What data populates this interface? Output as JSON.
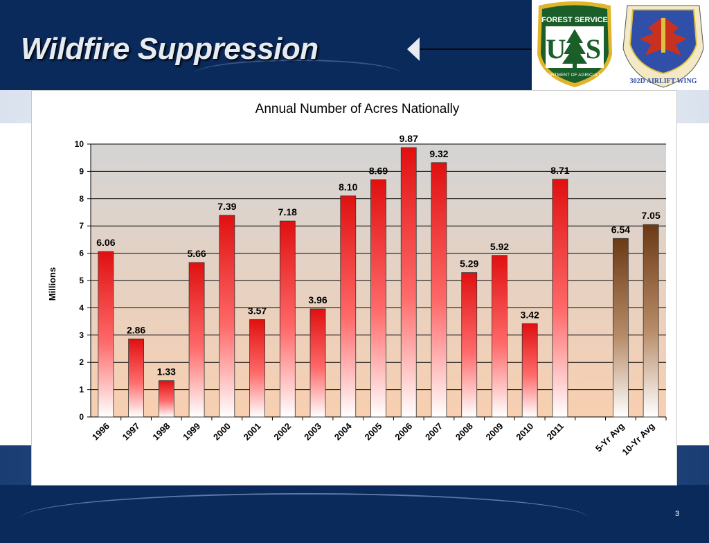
{
  "slide": {
    "title": "Wildfire Suppression",
    "page_number": "3"
  },
  "logos": {
    "forest_service": {
      "top_text": "FOREST SERVICE",
      "letters": "US",
      "bottom_text": "DEPARTMENT OF AGRICULTURE",
      "color": "#1a5e2a",
      "accent": "#e0b52a"
    },
    "airlift_wing": {
      "text": "302D AIRLIFT WING",
      "color": "#2f4fa8",
      "accent": "#c83020"
    }
  },
  "chart_data": {
    "type": "bar",
    "title": "Annual Number of Acres Nationally",
    "xlabel": "",
    "ylabel": "Millions",
    "ylim": [
      0,
      10
    ],
    "yticks": [
      0,
      1,
      2,
      3,
      4,
      5,
      6,
      7,
      8,
      9,
      10
    ],
    "grid": true,
    "categories": [
      "1996",
      "1997",
      "1998",
      "1999",
      "2000",
      "2001",
      "2002",
      "2003",
      "2004",
      "2005",
      "2006",
      "2007",
      "2008",
      "2009",
      "2010",
      "2011",
      "",
      "5-Yr Avg",
      "10-Yr Avg"
    ],
    "values": [
      6.06,
      2.86,
      1.33,
      5.66,
      7.39,
      3.57,
      7.18,
      3.96,
      8.1,
      8.69,
      9.87,
      9.32,
      5.29,
      5.92,
      3.42,
      8.71,
      null,
      6.54,
      7.05
    ],
    "data_labels": [
      "6.06",
      "2.86",
      "1.33",
      "5.66",
      "7.39",
      "3.57",
      "7.18",
      "3.96",
      "8.10",
      "8.69",
      "9.87",
      "9.32",
      "5.29",
      "5.92",
      "3.42",
      "8.71",
      "",
      "6.54",
      "7.05"
    ],
    "colors": {
      "annual_bar": "#e01010",
      "average_bar": "#6b3a14",
      "plot_top": "#d4d4d4",
      "plot_bottom": "#f8cfb0"
    }
  }
}
